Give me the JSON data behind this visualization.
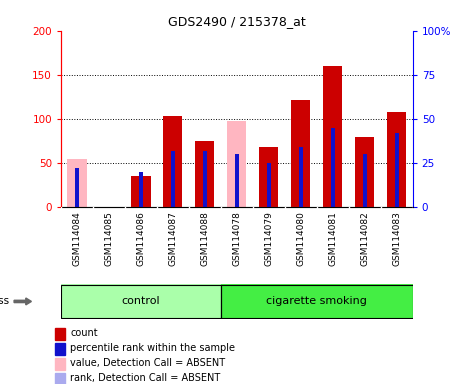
{
  "title": "GDS2490 / 215378_at",
  "samples": [
    "GSM114084",
    "GSM114085",
    "GSM114086",
    "GSM114087",
    "GSM114088",
    "GSM114078",
    "GSM114079",
    "GSM114080",
    "GSM114081",
    "GSM114082",
    "GSM114083"
  ],
  "count_values": [
    0,
    0,
    35,
    103,
    75,
    0,
    68,
    122,
    160,
    80,
    108
  ],
  "rank_values": [
    22,
    2,
    20,
    32,
    32,
    30,
    25,
    34,
    45,
    30,
    42
  ],
  "absent_value_bars": [
    55,
    0,
    0,
    0,
    0,
    98,
    0,
    0,
    0,
    0,
    0
  ],
  "absent_rank_bars": [
    0,
    0,
    0,
    0,
    0,
    30,
    0,
    0,
    0,
    0,
    0
  ],
  "is_absent": [
    true,
    true,
    false,
    false,
    false,
    true,
    false,
    false,
    false,
    false,
    false
  ],
  "groups": [
    {
      "label": "control",
      "start": 0,
      "end": 5,
      "color": "#aaffaa"
    },
    {
      "label": "cigarette smoking",
      "start": 5,
      "end": 11,
      "color": "#44ee44"
    }
  ],
  "ylim_left": [
    0,
    200
  ],
  "ylim_right": [
    0,
    100
  ],
  "yticks_left": [
    0,
    50,
    100,
    150,
    200
  ],
  "yticks_right": [
    0,
    25,
    50,
    75,
    100
  ],
  "ytick_labels_right": [
    "0",
    "25",
    "50",
    "75",
    "100%"
  ],
  "ytick_labels_left": [
    "0",
    "50",
    "100",
    "150",
    "200"
  ],
  "wide_bar_width": 0.6,
  "narrow_bar_width": 0.12,
  "count_color": "#cc0000",
  "rank_color": "#1111cc",
  "absent_value_color": "#ffb6c1",
  "absent_rank_color": "#aaaaee",
  "bg_color": "#cccccc",
  "group_colors": [
    "#aaffaa",
    "#44ee44"
  ],
  "legend_items": [
    {
      "label": "count",
      "color": "#cc0000"
    },
    {
      "label": "percentile rank within the sample",
      "color": "#1111cc"
    },
    {
      "label": "value, Detection Call = ABSENT",
      "color": "#ffb6c1"
    },
    {
      "label": "rank, Detection Call = ABSENT",
      "color": "#aaaaee"
    }
  ]
}
